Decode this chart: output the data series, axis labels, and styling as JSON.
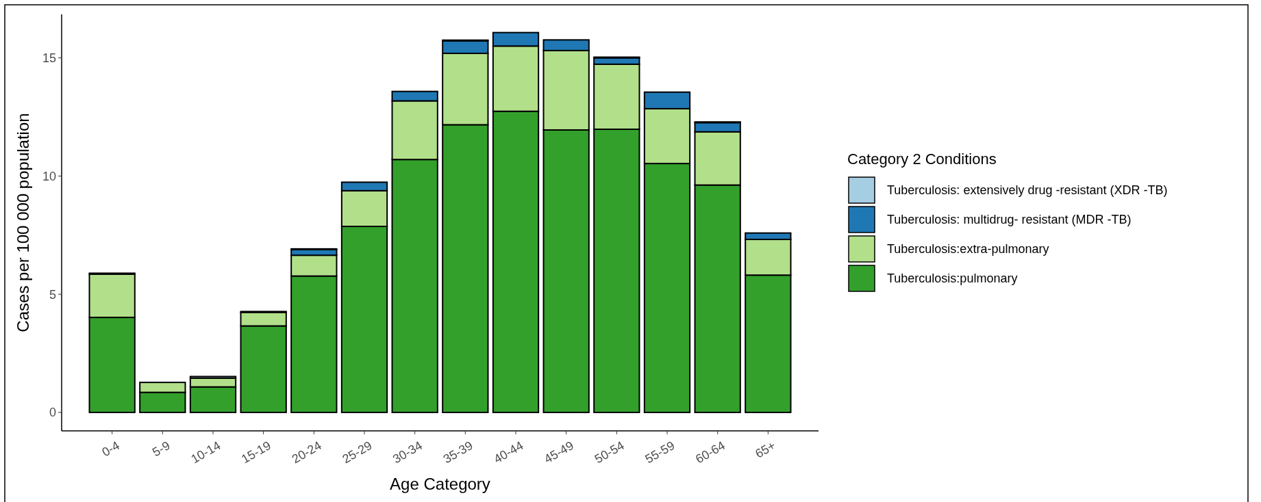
{
  "chart_data": {
    "type": "bar",
    "stacked": true,
    "xlabel": "Age Category",
    "ylabel": "Cases per 100 000 population",
    "legend_title": "Category 2 Conditions",
    "legend": "right",
    "grid": false,
    "categories": [
      "0-4",
      "5-9",
      "10-14",
      "15-19",
      "20-24",
      "25-29",
      "30-34",
      "35-39",
      "40-44",
      "45-49",
      "50-54",
      "55-59",
      "60-64",
      "65+"
    ],
    "ylim": [
      -0.78,
      16.84
    ],
    "yticks": [
      0,
      5,
      10,
      15
    ],
    "series": [
      {
        "name": "Tuberculosis:pulmonary",
        "color": "#33a02c",
        "values": [
          4.02,
          0.85,
          1.08,
          3.66,
          5.77,
          7.87,
          10.7,
          12.17,
          12.74,
          11.95,
          11.98,
          10.53,
          9.62,
          5.81
        ]
      },
      {
        "name": "Tuberculosis:extra-pulmonary",
        "color": "#b2df8a",
        "values": [
          1.83,
          0.42,
          0.37,
          0.57,
          0.88,
          1.51,
          2.48,
          3.02,
          2.76,
          3.36,
          2.75,
          2.32,
          2.25,
          1.51
        ]
      },
      {
        "name": "Tuberculosis: multidrug- resistant (MDR -TB)",
        "color": "#1f78b4",
        "values": [
          0,
          0,
          0,
          0,
          0.24,
          0.36,
          0.4,
          0.53,
          0.57,
          0.45,
          0.27,
          0.7,
          0.39,
          0.27
        ]
      },
      {
        "name": "Tuberculosis: extensively drug -resistant (XDR -TB)",
        "color": "#a6cee3",
        "values": [
          0.04,
          0,
          0.07,
          0.04,
          0.03,
          0,
          0,
          0.03,
          0,
          0,
          0.03,
          0,
          0.03,
          0
        ]
      }
    ]
  }
}
